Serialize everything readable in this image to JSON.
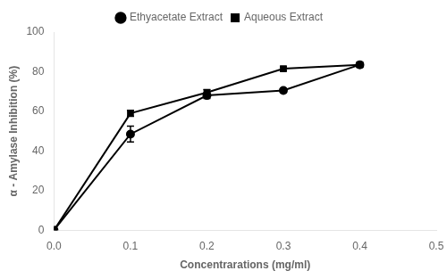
{
  "chart_data": {
    "type": "line",
    "x": [
      0.0,
      0.1,
      0.2,
      0.3,
      0.4
    ],
    "series": [
      {
        "name": "Ethyacetate Extract",
        "color": "#000000",
        "marker": "circle",
        "values": [
          0.0,
          48.5,
          68.0,
          70.5,
          83.5
        ],
        "yerr": [
          0.0,
          4.0,
          1.5,
          1.0,
          1.0
        ]
      },
      {
        "name": "Aqueous Extract",
        "color": "#000000",
        "marker": "square",
        "values": [
          0.0,
          59.0,
          69.5,
          81.5,
          83.5
        ],
        "yerr": [
          0.0,
          1.5,
          1.5,
          1.0,
          1.0
        ]
      }
    ],
    "x_label": "Concentrarations (mg/ml)",
    "y_label": "α - Amylase Inhibition (%)",
    "xlim": [
      0.0,
      0.5
    ],
    "ylim": [
      0,
      100
    ],
    "xticks": [
      {
        "value": 0.0,
        "label": "0.0"
      },
      0.1,
      0.2,
      0.3,
      0.4,
      0.5
    ],
    "yticks": [
      0,
      20,
      40,
      60,
      80,
      100
    ],
    "grid": false,
    "legend": "top"
  }
}
